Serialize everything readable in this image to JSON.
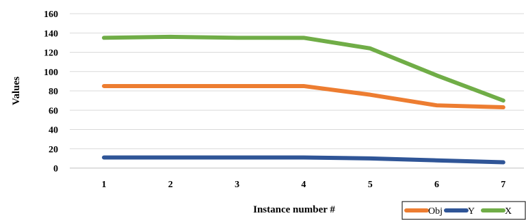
{
  "chart_data": {
    "type": "line",
    "title": "",
    "xlabel": "Instance number  #",
    "ylabel": "Values",
    "x": [
      1,
      2,
      3,
      4,
      5,
      6,
      7
    ],
    "x_tick_labels": [
      "1",
      "2",
      "3",
      "4",
      "5",
      "6",
      "7"
    ],
    "ylim": [
      0,
      160
    ],
    "y_ticks": [
      0,
      20,
      40,
      60,
      80,
      100,
      120,
      140,
      160
    ],
    "grid": true,
    "legend_position": "bottom-right",
    "series": [
      {
        "name": "Obj",
        "color": "#ED7D31",
        "values": [
          85,
          85,
          85,
          85,
          76,
          65,
          63
        ]
      },
      {
        "name": "Y",
        "color": "#2F5597",
        "values": [
          11,
          11,
          11,
          11,
          10,
          8,
          6
        ]
      },
      {
        "name": "X",
        "color": "#70AD47",
        "values": [
          135,
          136,
          135,
          135,
          124,
          96,
          70
        ]
      }
    ]
  }
}
